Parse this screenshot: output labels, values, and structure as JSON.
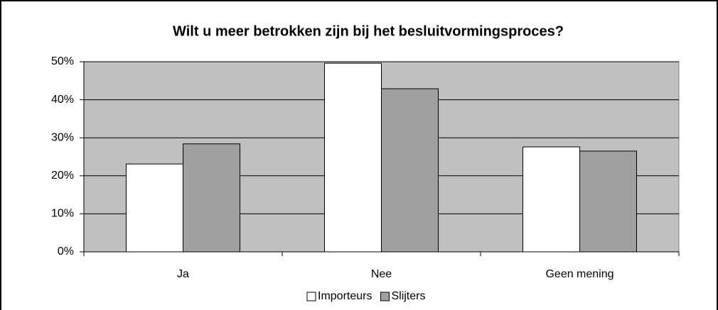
{
  "chart_data": {
    "type": "bar",
    "title": "Wilt u meer betrokken zijn bij het besluitvormingsproces?",
    "categories": [
      "Ja",
      "Nee",
      "Geen mening"
    ],
    "series": [
      {
        "name": "Importeurs",
        "color": "#ffffff",
        "values": [
          23.1,
          49.6,
          27.6
        ]
      },
      {
        "name": "Slijters",
        "color": "#a0a0a0",
        "values": [
          28.4,
          42.9,
          26.5
        ]
      }
    ],
    "ylim": [
      0,
      50
    ],
    "yticks": [
      {
        "value": 0,
        "label": "0%"
      },
      {
        "value": 10,
        "label": "10%"
      },
      {
        "value": 20,
        "label": "20%"
      },
      {
        "value": 30,
        "label": "30%"
      },
      {
        "value": 40,
        "label": "40%"
      },
      {
        "value": 50,
        "label": "50%"
      }
    ],
    "grid": true,
    "legend": "bottom"
  }
}
